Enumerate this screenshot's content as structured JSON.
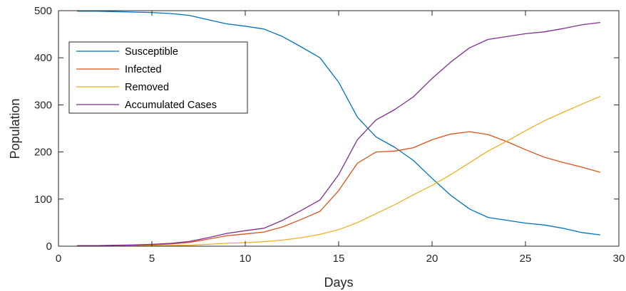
{
  "chart_data": {
    "type": "line",
    "title": "",
    "xlabel": "Days",
    "ylabel": "Population",
    "xlim": [
      0,
      30
    ],
    "ylim": [
      0,
      500
    ],
    "xticks": [
      0,
      5,
      10,
      15,
      20,
      25,
      30
    ],
    "yticks": [
      0,
      100,
      200,
      300,
      400,
      500
    ],
    "grid": false,
    "legend_position": "top-left",
    "x": [
      1,
      2,
      3,
      4,
      5,
      6,
      7,
      8,
      9,
      10,
      11,
      12,
      13,
      14,
      15,
      16,
      17,
      18,
      19,
      20,
      21,
      22,
      23,
      24,
      25,
      26,
      27,
      28,
      29
    ],
    "series": [
      {
        "name": "Susceptible",
        "color": "#0072BD",
        "values": [
          499,
          499,
          498,
          497,
          496,
          494,
          490,
          481,
          472,
          467,
          461,
          445,
          423,
          400,
          348,
          274,
          232,
          210,
          182,
          144,
          108,
          79,
          61,
          55,
          49,
          45,
          38,
          29,
          24
        ]
      },
      {
        "name": "Infected",
        "color": "#D95319",
        "values": [
          1,
          1,
          1.5,
          2,
          3,
          4.5,
          8,
          15,
          22,
          26,
          30,
          41,
          57,
          74,
          118,
          176,
          200,
          202,
          209,
          226,
          238,
          243,
          237,
          222,
          205,
          189,
          178,
          168,
          157
        ]
      },
      {
        "name": "Removed",
        "color": "#EDB120",
        "values": [
          0,
          0,
          0.5,
          0.8,
          1,
          1.5,
          2,
          4,
          6,
          7.5,
          9.5,
          13,
          18,
          25,
          35,
          50,
          69,
          88,
          109,
          129,
          152,
          177,
          202,
          223,
          245,
          266,
          284,
          301,
          318
        ]
      },
      {
        "name": "Accumulated Cases",
        "color": "#7E2F8E",
        "values": [
          1,
          1,
          2,
          2.5,
          4,
          6,
          10,
          18,
          27,
          33,
          38,
          55,
          76,
          98,
          152,
          226,
          268,
          290,
          317,
          356,
          391,
          421,
          439,
          445,
          451,
          455,
          462,
          470,
          475
        ]
      }
    ]
  }
}
